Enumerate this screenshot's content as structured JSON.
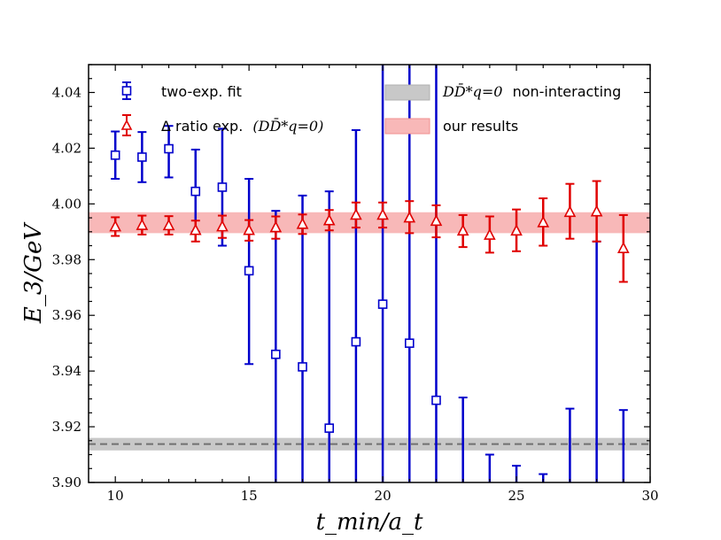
{
  "chart_data": {
    "type": "scatter",
    "xlabel": "t_min/a_t",
    "ylabel": "E_3/GeV",
    "xlim": [
      9,
      30
    ],
    "ylim": [
      3.9,
      4.05
    ],
    "xticks": [
      10,
      15,
      20,
      25,
      30
    ],
    "yticks": [
      3.9,
      3.92,
      3.94,
      3.96,
      3.98,
      4.0,
      4.02,
      4.04
    ],
    "ytick_labels": [
      "3.90",
      "3.92",
      "3.94",
      "3.96",
      "3.98",
      "4.00",
      "4.02",
      "4.04"
    ],
    "series": [
      {
        "name": "two-exp. fit",
        "color": "#0000cc",
        "marker": "square",
        "x": [
          10,
          11,
          12,
          13,
          14,
          15,
          16,
          17,
          18,
          19,
          20,
          21,
          22,
          23,
          24,
          25,
          26,
          27,
          28,
          29
        ],
        "y": [
          4.0175,
          4.0168,
          4.0198,
          4.0045,
          4.006,
          3.976,
          3.946,
          3.9415,
          3.9195,
          3.9505,
          3.964,
          3.95,
          3.9295,
          null,
          null,
          null,
          null,
          null,
          null,
          null
        ],
        "err_lo": [
          4.009,
          4.0078,
          4.0095,
          3.99,
          3.985,
          3.9425,
          3.9,
          3.9,
          3.9,
          3.9,
          3.9,
          3.9,
          3.9,
          3.9,
          3.9,
          3.9,
          3.9,
          3.9,
          3.9,
          3.9
        ],
        "err_hi": [
          4.026,
          4.0258,
          4.028,
          4.0195,
          4.027,
          4.009,
          3.9975,
          4.003,
          4.0045,
          4.0265,
          4.05,
          4.05,
          4.05,
          3.9305,
          3.91,
          3.906,
          3.903,
          3.9265,
          3.9865,
          3.926
        ]
      },
      {
        "name": "Δ ratio exp. (DD̄*_{q=0})",
        "color": "#e00000",
        "marker": "triangle",
        "x": [
          10,
          11,
          12,
          13,
          14,
          15,
          16,
          17,
          18,
          19,
          20,
          21,
          22,
          23,
          24,
          25,
          26,
          27,
          28,
          29
        ],
        "y": [
          3.9918,
          3.9923,
          3.9922,
          3.9905,
          3.9918,
          3.9905,
          3.9915,
          3.9927,
          3.994,
          3.996,
          3.996,
          3.995,
          3.9938,
          3.9903,
          3.9888,
          3.9903,
          3.9933,
          3.997,
          3.9972,
          3.984
        ],
        "err_lo": [
          3.9885,
          3.989,
          3.989,
          3.9865,
          3.9878,
          3.9868,
          3.9875,
          3.9892,
          3.9905,
          3.9915,
          3.9915,
          3.9895,
          3.988,
          3.9845,
          3.9825,
          3.983,
          3.985,
          3.9875,
          3.9865,
          3.972
        ],
        "err_hi": [
          3.9952,
          3.9958,
          3.9956,
          3.994,
          3.9958,
          3.9942,
          3.9955,
          3.9962,
          3.9978,
          4.0005,
          4.0005,
          4.001,
          3.9995,
          3.996,
          3.9955,
          3.998,
          4.002,
          4.0072,
          4.0082,
          3.996
        ]
      }
    ],
    "bands": [
      {
        "name": "DD̄*_{q=0} non-interacting",
        "center": 3.9138,
        "lo": 3.9115,
        "hi": 3.916,
        "fill": "#c8c8c8",
        "line_color": "#707070",
        "dashed": true
      },
      {
        "name": "our results",
        "center": 3.9932,
        "lo": 3.9895,
        "hi": 3.997,
        "fill": "#f8b8b8"
      }
    ],
    "legend_position": "top",
    "legend": {
      "fit_label": "two-exp. fit",
      "ratio_prefix": "Δ ratio exp.",
      "ratio_math": "(DD̄*q=0)",
      "non_interacting_math": "DD̄*q=0",
      "non_interacting_text": "non-interacting",
      "results_label": "our results"
    }
  }
}
